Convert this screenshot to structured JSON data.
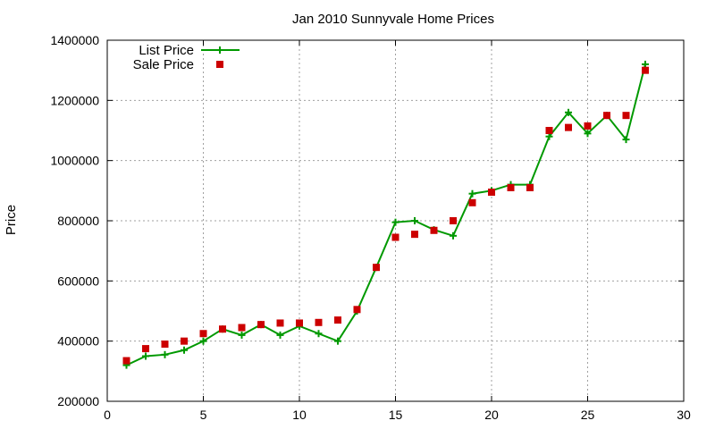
{
  "colors": {
    "list_price": "#009900",
    "sale_price": "#cc0000"
  },
  "chart_data": {
    "type": "line",
    "title": "Jan 2010 Sunnyvale Home Prices",
    "xlabel": "",
    "ylabel": "Price",
    "xlim": [
      0,
      30
    ],
    "ylim": [
      200000,
      1400000
    ],
    "x_ticks": [
      0,
      5,
      10,
      15,
      20,
      25,
      30
    ],
    "y_ticks": [
      200000,
      400000,
      600000,
      800000,
      1000000,
      1200000,
      1400000
    ],
    "grid": true,
    "legend_position": "top-left",
    "series": [
      {
        "name": "List Price",
        "style": "line-with-plus-markers",
        "x": [
          1,
          2,
          3,
          4,
          5,
          6,
          7,
          8,
          9,
          10,
          11,
          12,
          13,
          14,
          15,
          16,
          17,
          18,
          19,
          20,
          21,
          22,
          23,
          24,
          25,
          26,
          27,
          28
        ],
        "y": [
          320000,
          350000,
          355000,
          370000,
          400000,
          440000,
          420000,
          455000,
          420000,
          450000,
          425000,
          400000,
          500000,
          645000,
          795000,
          800000,
          770000,
          750000,
          890000,
          900000,
          920000,
          920000,
          1080000,
          1160000,
          1090000,
          1150000,
          1070000,
          1320000
        ]
      },
      {
        "name": "Sale Price",
        "style": "square-markers",
        "x": [
          1,
          2,
          3,
          4,
          5,
          6,
          7,
          8,
          9,
          10,
          11,
          12,
          13,
          14,
          15,
          16,
          17,
          18,
          19,
          20,
          21,
          22,
          23,
          24,
          25,
          26,
          27,
          28
        ],
        "y": [
          335000,
          375000,
          390000,
          400000,
          425000,
          440000,
          445000,
          455000,
          460000,
          460000,
          462000,
          470000,
          505000,
          645000,
          745000,
          755000,
          768000,
          800000,
          860000,
          895000,
          910000,
          910000,
          1100000,
          1110000,
          1115000,
          1150000,
          1150000,
          1300000
        ]
      }
    ]
  }
}
